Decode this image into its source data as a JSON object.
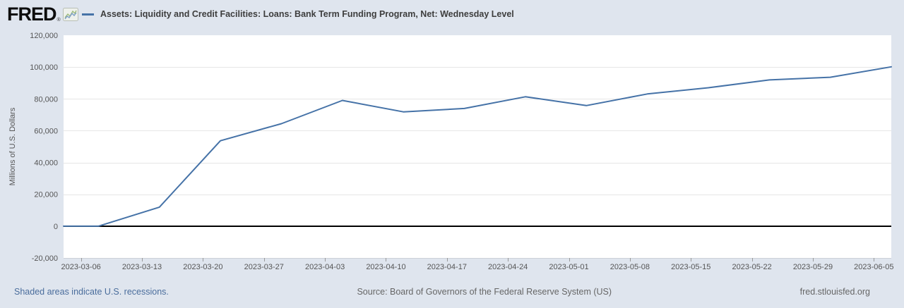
{
  "header": {
    "logo_text": "FRED",
    "logo_registered": "®",
    "series_legend": "Assets: Liquidity and Credit Facilities: Loans: Bank Term Funding Program, Net: Wednesday Level"
  },
  "footer": {
    "recessions_note": "Shaded areas indicate U.S. recessions.",
    "source": "Source: Board of Governors of the Federal Reserve System (US)",
    "site": "fred.stlouisfed.org"
  },
  "colors": {
    "background": "#dfe5ee",
    "plot_background": "#ffffff",
    "line": "#4572a7",
    "grid": "#e6e6e6",
    "zero_line": "#000000",
    "axis_line": "#ccd0d8",
    "tick_mark": "#999999",
    "axis_text": "#555555",
    "title_text": "#3d3d3d",
    "link_text": "#4a6d9c",
    "muted_text": "#666666"
  },
  "chart_data": {
    "type": "line",
    "title": "Assets: Liquidity and Credit Facilities: Loans: Bank Term Funding Program, Net: Wednesday Level",
    "xlabel": "",
    "ylabel": "Millions of U.S. Dollars",
    "ylim": [
      -20000,
      120000
    ],
    "y_ticks": [
      -20000,
      0,
      20000,
      40000,
      60000,
      80000,
      100000,
      120000
    ],
    "x_range": [
      "2023-03-04",
      "2023-06-07"
    ],
    "x_ticks": [
      "2023-03-06",
      "2023-03-13",
      "2023-03-20",
      "2023-03-27",
      "2023-04-03",
      "2023-04-10",
      "2023-04-17",
      "2023-04-24",
      "2023-05-01",
      "2023-05-08",
      "2023-05-15",
      "2023-05-22",
      "2023-05-29",
      "2023-06-05"
    ],
    "grid": true,
    "zero_line": true,
    "legend_position": "top",
    "series": [
      {
        "name": "Assets: Liquidity and Credit Facilities: Loans: Bank Term Funding Program, Net: Wednesday Level",
        "color": "#4572a7",
        "x": [
          "2023-03-04",
          "2023-03-08",
          "2023-03-15",
          "2023-03-22",
          "2023-03-29",
          "2023-04-05",
          "2023-04-12",
          "2023-04-19",
          "2023-04-26",
          "2023-05-03",
          "2023-05-10",
          "2023-05-17",
          "2023-05-24",
          "2023-05-31",
          "2023-06-07"
        ],
        "values": [
          0,
          0,
          11943,
          53669,
          64403,
          79021,
          71837,
          73982,
          81327,
          75778,
          83101,
          87006,
          91907,
          93615,
          100161
        ]
      }
    ]
  }
}
